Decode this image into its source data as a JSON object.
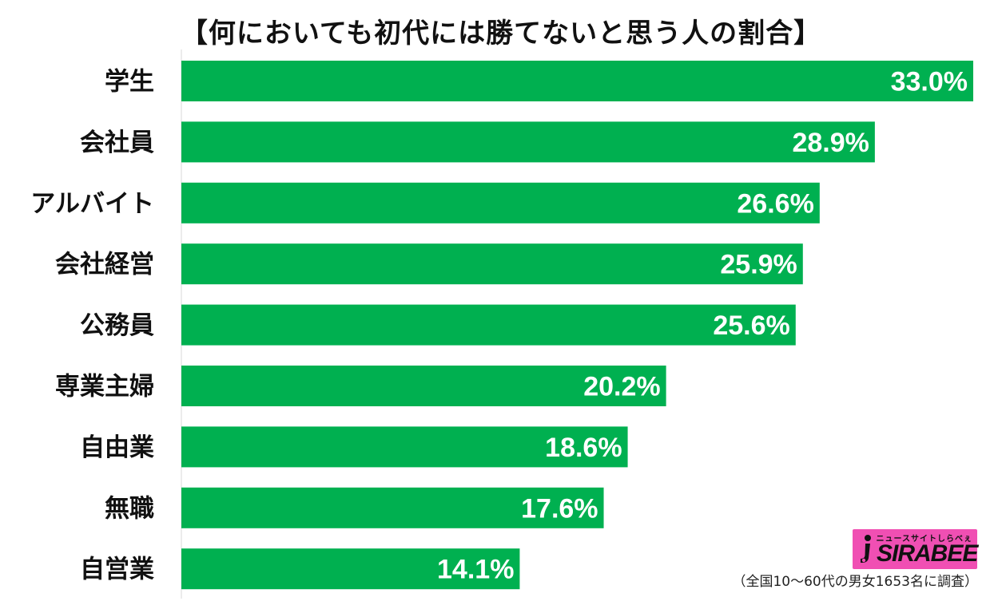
{
  "chart_data": {
    "type": "bar",
    "orientation": "horizontal",
    "title": "【何においても初代には勝てないと思う人の割合】",
    "categories": [
      "学生",
      "会社員",
      "アルバイト",
      "会社経営",
      "公務員",
      "専業主婦",
      "自由業",
      "無職",
      "自営業"
    ],
    "values": [
      33.0,
      28.9,
      26.6,
      25.9,
      25.6,
      20.2,
      18.6,
      17.6,
      14.1
    ],
    "value_labels": [
      "33.0%",
      "28.9%",
      "26.6%",
      "25.9%",
      "25.6%",
      "20.2%",
      "18.6%",
      "17.6%",
      "14.1%"
    ],
    "xlim": [
      0,
      33.0
    ],
    "grid": false,
    "bar_color": "#00b050"
  },
  "logo": {
    "tagline": "ニュースサイトしらべぇ",
    "wordmark": "SIRABEE",
    "color": "#f04fb3"
  },
  "footnote": "（全国10～60代の男女1653名に調査）"
}
